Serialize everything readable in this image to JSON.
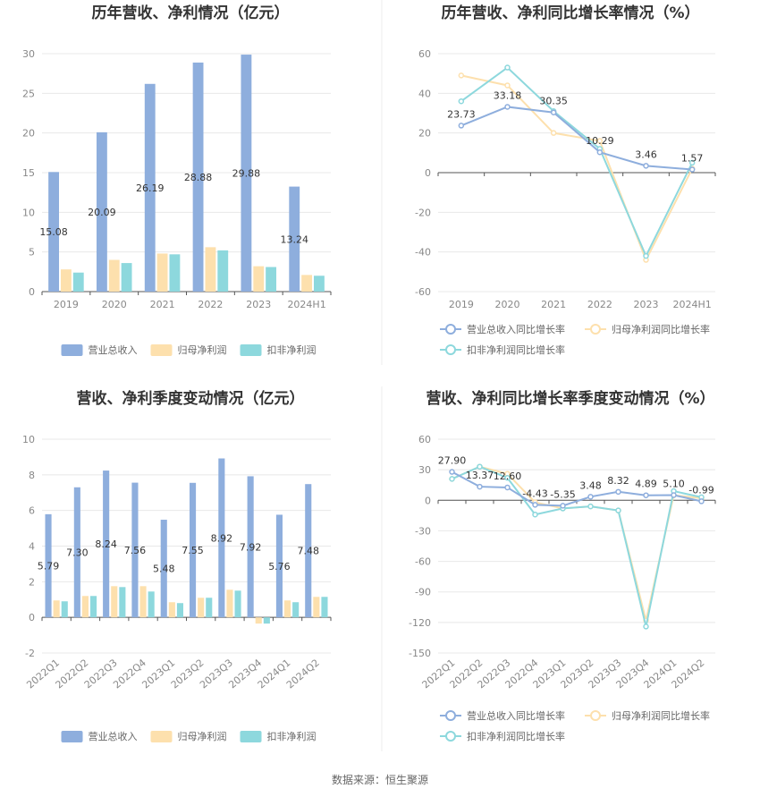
{
  "colors": {
    "revenue": "#8eaedd",
    "parent_profit": "#fde0ad",
    "non_recurring_profit": "#8dd8dd",
    "grid": "#e8e8e8",
    "axis": "#555555",
    "divider": "#eeeeee"
  },
  "legend_bars": [
    "营业总收入",
    "归母净利润",
    "扣非净利润"
  ],
  "legend_lines": [
    "营业总收入同比增长率",
    "归母净利润同比增长率",
    "扣非净利润同比增长率"
  ],
  "footer": {
    "source": "数据来源：恒生聚源"
  },
  "chart_data": [
    {
      "type": "bar",
      "title": "历年营收、净利情况（亿元）",
      "categories": [
        "2019",
        "2020",
        "2021",
        "2022",
        "2023",
        "2024H1"
      ],
      "series": [
        {
          "name": "营业总收入",
          "values": [
            15.08,
            20.09,
            26.19,
            28.88,
            29.88,
            13.24
          ]
        },
        {
          "name": "归母净利润",
          "values": [
            2.8,
            4.0,
            4.8,
            5.6,
            3.2,
            2.1
          ]
        },
        {
          "name": "扣非净利润",
          "values": [
            2.4,
            3.6,
            4.7,
            5.2,
            3.1,
            2.0
          ]
        }
      ],
      "data_labels": [
        "15.08",
        "20.09",
        "26.19",
        "28.88",
        "29.88",
        "13.24"
      ],
      "yticks": [
        "0",
        "5",
        "10",
        "15",
        "20",
        "25",
        "30"
      ],
      "ylim": [
        0,
        30
      ]
    },
    {
      "type": "line",
      "title": "历年营收、净利同比增长率情况（%）",
      "categories": [
        "2019",
        "2020",
        "2021",
        "2022",
        "2023",
        "2024H1"
      ],
      "series": [
        {
          "name": "营业总收入同比增长率",
          "values": [
            23.73,
            33.18,
            30.35,
            10.29,
            3.46,
            1.57
          ]
        },
        {
          "name": "归母净利润同比增长率",
          "values": [
            49,
            44,
            20,
            16,
            -44,
            2
          ]
        },
        {
          "name": "扣非净利润同比增长率",
          "values": [
            36,
            53,
            31,
            12,
            -42,
            5
          ]
        }
      ],
      "data_labels": [
        "23.73",
        "33.18",
        "30.35",
        "10.29",
        "3.46",
        "1.57"
      ],
      "yticks": [
        "-60",
        "-40",
        "-20",
        "0",
        "20",
        "40",
        "60"
      ],
      "ylim": [
        -60,
        60
      ]
    },
    {
      "type": "bar",
      "title": "营收、净利季度变动情况（亿元）",
      "categories": [
        "2022Q1",
        "2022Q2",
        "2022Q3",
        "2022Q4",
        "2023Q1",
        "2023Q2",
        "2023Q3",
        "2023Q4",
        "2024Q1",
        "2024Q2"
      ],
      "series": [
        {
          "name": "营业总收入",
          "values": [
            5.79,
            7.3,
            8.24,
            7.56,
            5.48,
            7.55,
            8.92,
            7.92,
            5.76,
            7.48
          ]
        },
        {
          "name": "归母净利润",
          "values": [
            0.95,
            1.2,
            1.75,
            1.75,
            0.85,
            1.1,
            1.55,
            -0.35,
            0.95,
            1.15
          ]
        },
        {
          "name": "扣非净利润",
          "values": [
            0.9,
            1.2,
            1.7,
            1.45,
            0.8,
            1.1,
            1.5,
            -0.35,
            0.85,
            1.15
          ]
        }
      ],
      "data_labels": [
        "5.79",
        "7.30",
        "8.24",
        "7.56",
        "5.48",
        "7.55",
        "8.92",
        "7.92",
        "5.76",
        "7.48"
      ],
      "yticks": [
        "-2",
        "0",
        "2",
        "4",
        "6",
        "8",
        "10"
      ],
      "ylim": [
        -2,
        10
      ]
    },
    {
      "type": "line",
      "title": "营收、净利同比增长率季度变动情况（%）",
      "categories": [
        "2022Q1",
        "2022Q2",
        "2022Q3",
        "2022Q4",
        "2023Q1",
        "2023Q2",
        "2023Q3",
        "2023Q4",
        "2024Q1",
        "2024Q2"
      ],
      "series": [
        {
          "name": "营业总收入同比增长率",
          "values": [
            27.9,
            13.37,
            12.6,
            -4.43,
            -5.35,
            3.48,
            8.32,
            4.89,
            5.1,
            -0.99
          ]
        },
        {
          "name": "归母净利润同比增长率",
          "values": [
            21,
            33,
            26,
            -2,
            -8,
            -6,
            -10,
            -118,
            5,
            2
          ]
        },
        {
          "name": "扣非净利润同比增长率",
          "values": [
            21,
            33,
            22,
            -14,
            -8,
            -6,
            -10,
            -124,
            9,
            3
          ]
        }
      ],
      "data_labels": [
        "27.90",
        "13.37",
        "12.60",
        "-4.43",
        "-5.35",
        "3.48",
        "8.32",
        "4.89",
        "5.10",
        "-0.99"
      ],
      "yticks": [
        "-150",
        "-120",
        "-90",
        "-60",
        "-30",
        "0",
        "30",
        "60"
      ],
      "ylim": [
        -150,
        60
      ]
    }
  ]
}
